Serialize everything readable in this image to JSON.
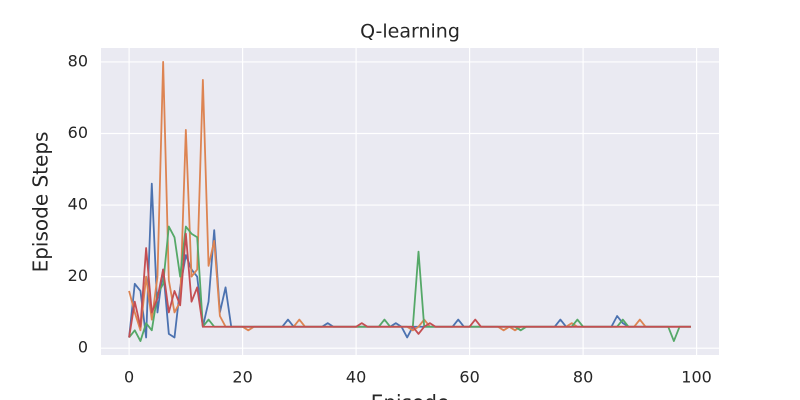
{
  "chart_data": {
    "type": "line",
    "title": "Q-learning",
    "x_label": "Episode",
    "y_label": "Episode Steps",
    "x": [
      0,
      1,
      2,
      3,
      4,
      5,
      6,
      7,
      8,
      9,
      10,
      11,
      12,
      13,
      14,
      15,
      16,
      17,
      18,
      19,
      20,
      21,
      22,
      23,
      24,
      25,
      26,
      27,
      28,
      29,
      30,
      31,
      32,
      33,
      34,
      35,
      36,
      37,
      38,
      39,
      40,
      41,
      42,
      43,
      44,
      45,
      46,
      47,
      48,
      49,
      50,
      51,
      52,
      53,
      54,
      55,
      56,
      57,
      58,
      59,
      60,
      61,
      62,
      63,
      64,
      65,
      66,
      67,
      68,
      69,
      70,
      71,
      72,
      73,
      74,
      75,
      76,
      77,
      78,
      79,
      80,
      81,
      82,
      83,
      84,
      85,
      86,
      87,
      88,
      89,
      90,
      91,
      92,
      93,
      94,
      95,
      96,
      97,
      98,
      99
    ],
    "series": [
      {
        "color": "#4c72b0",
        "values": [
          3,
          18,
          16,
          3,
          46,
          10,
          22,
          4,
          3,
          17,
          26,
          22,
          20,
          6,
          13,
          33,
          10,
          17,
          6,
          6,
          6,
          6,
          6,
          6,
          6,
          6,
          6,
          6,
          8,
          6,
          6,
          6,
          6,
          6,
          6,
          7,
          6,
          6,
          6,
          6,
          6,
          6,
          6,
          6,
          6,
          6,
          6,
          7,
          6,
          3,
          6,
          6,
          6,
          6,
          6,
          6,
          6,
          6,
          8,
          6,
          6,
          6,
          6,
          6,
          6,
          6,
          6,
          6,
          6,
          6,
          6,
          6,
          6,
          6,
          6,
          6,
          8,
          6,
          6,
          6,
          6,
          6,
          6,
          6,
          6,
          6,
          9,
          7,
          6,
          6,
          6,
          6,
          6,
          6,
          6,
          6,
          6,
          6,
          6,
          6
        ]
      },
      {
        "color": "#dd8452",
        "values": [
          16,
          10,
          5,
          20,
          8,
          20,
          80,
          19,
          10,
          13,
          61,
          20,
          22,
          75,
          23,
          30,
          9,
          6,
          6,
          6,
          6,
          5,
          6,
          6,
          6,
          6,
          6,
          6,
          6,
          6,
          8,
          6,
          6,
          6,
          6,
          6,
          6,
          6,
          6,
          6,
          6,
          6,
          6,
          6,
          6,
          6,
          6,
          6,
          6,
          6,
          5,
          6,
          8,
          6,
          6,
          6,
          6,
          6,
          6,
          6,
          6,
          6,
          6,
          6,
          6,
          6,
          5,
          6,
          5,
          6,
          6,
          6,
          6,
          6,
          6,
          6,
          6,
          6,
          7,
          6,
          6,
          6,
          6,
          6,
          6,
          6,
          6,
          6,
          6,
          6,
          8,
          6,
          6,
          6,
          6,
          6,
          6,
          6,
          6,
          6
        ]
      },
      {
        "color": "#55a868",
        "values": [
          3,
          5,
          2,
          7,
          5,
          15,
          18,
          34,
          31,
          20,
          34,
          32,
          31,
          6,
          8,
          6,
          6,
          6,
          6,
          6,
          6,
          6,
          6,
          6,
          6,
          6,
          6,
          6,
          6,
          6,
          6,
          6,
          6,
          6,
          6,
          6,
          6,
          6,
          6,
          6,
          6,
          6,
          6,
          6,
          6,
          8,
          6,
          6,
          6,
          6,
          6,
          27,
          6,
          6,
          6,
          6,
          6,
          6,
          6,
          6,
          6,
          6,
          6,
          6,
          6,
          6,
          6,
          6,
          6,
          5,
          6,
          6,
          6,
          6,
          6,
          6,
          6,
          6,
          6,
          8,
          6,
          6,
          6,
          6,
          6,
          6,
          6,
          8,
          6,
          6,
          6,
          6,
          6,
          6,
          6,
          6,
          2,
          6,
          6,
          6
        ]
      },
      {
        "color": "#c44e52",
        "values": [
          3,
          13,
          6,
          28,
          10,
          14,
          22,
          10,
          16,
          12,
          32,
          13,
          17,
          6,
          6,
          6,
          6,
          6,
          6,
          6,
          6,
          6,
          6,
          6,
          6,
          6,
          6,
          6,
          6,
          6,
          6,
          6,
          6,
          6,
          6,
          6,
          6,
          6,
          6,
          6,
          6,
          7,
          6,
          6,
          6,
          6,
          6,
          6,
          6,
          6,
          6,
          4,
          6,
          7,
          6,
          6,
          6,
          6,
          6,
          6,
          6,
          8,
          6,
          6,
          6,
          6,
          6,
          6,
          6,
          6,
          6,
          6,
          6,
          6,
          6,
          6,
          6,
          6,
          6,
          6,
          6,
          6,
          6,
          6,
          6,
          6,
          6,
          6,
          6,
          6,
          6,
          6,
          6,
          6,
          6,
          6,
          6,
          6,
          6,
          6
        ]
      }
    ],
    "xlim": [
      -4.95,
      103.95
    ],
    "ylim": [
      -1.9,
      83.9
    ],
    "xticks": [
      0,
      20,
      40,
      60,
      80,
      100
    ],
    "yticks": [
      0,
      20,
      40,
      60,
      80
    ],
    "grid": true
  }
}
